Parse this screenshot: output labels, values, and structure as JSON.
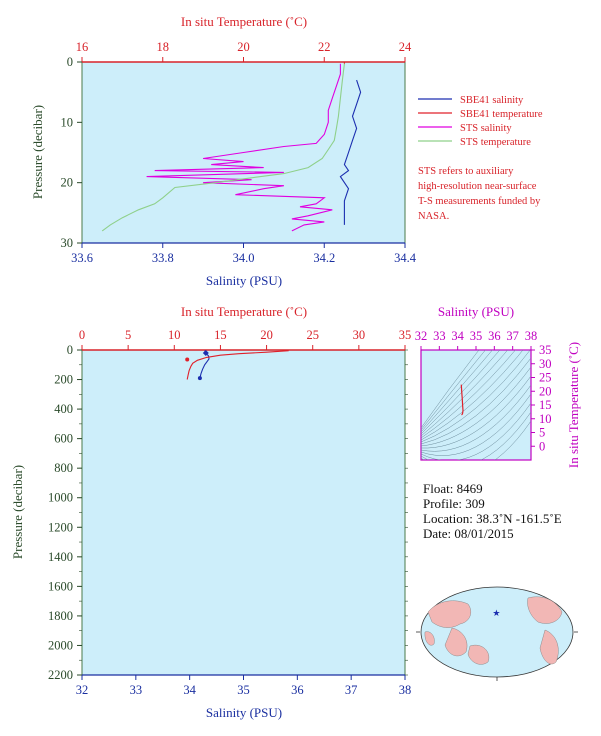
{
  "colors": {
    "plot_bg": "#cdeefa",
    "temperature": "#e0202a",
    "salinity": "#1c2fb0",
    "sts_salinity": "#e000e0",
    "sts_temperature": "#8fd08a",
    "pressure_axis": "#2a4a2a",
    "ts_axis": "#c000c0"
  },
  "chart_data": [
    {
      "id": "top-profile",
      "type": "line",
      "x_bottom_label": "Salinity (PSU)",
      "x_top_label": "In situ Temperature (˚C)",
      "ylabel": "Pressure (decibar)",
      "salinity_range": [
        33.6,
        34.4
      ],
      "temperature_range": [
        16,
        24
      ],
      "pressure_range": [
        0,
        30
      ],
      "y_inverted": true,
      "salinity_ticks": [
        "33.6",
        "33.8",
        "34.0",
        "34.2",
        "34.4"
      ],
      "temperature_ticks": [
        "16",
        "18",
        "20",
        "22",
        "24"
      ],
      "pressure_ticks": [
        "0",
        "10",
        "20",
        "30"
      ],
      "series": [
        {
          "name": "SBE41 salinity",
          "axis": "salinity",
          "color": "#1c2fb0",
          "points": [
            [
              34.28,
              3
            ],
            [
              34.29,
              5
            ],
            [
              34.28,
              7
            ],
            [
              34.27,
              9
            ],
            [
              34.28,
              11
            ],
            [
              34.27,
              13
            ],
            [
              34.26,
              15
            ],
            [
              34.25,
              17
            ],
            [
              34.26,
              18
            ],
            [
              34.24,
              19
            ],
            [
              34.26,
              21
            ],
            [
              34.25,
              23
            ],
            [
              34.25,
              25
            ],
            [
              34.25,
              27
            ]
          ]
        },
        {
          "name": "SBE41 temperature",
          "axis": "temperature",
          "color": "#e0202a",
          "points": [
            [
              22.5,
              0
            ],
            [
              22.5,
              0.3
            ]
          ]
        },
        {
          "name": "STS salinity",
          "axis": "sts_salinity",
          "color": "#e000e0",
          "points": [
            [
              34.24,
              0.3
            ],
            [
              34.24,
              2
            ],
            [
              34.23,
              4
            ],
            [
              34.22,
              6
            ],
            [
              34.21,
              8
            ],
            [
              34.21,
              10
            ],
            [
              34.2,
              12
            ],
            [
              34.18,
              13.5
            ],
            [
              34.1,
              14
            ],
            [
              34.0,
              15
            ],
            [
              33.9,
              16
            ],
            [
              34.0,
              16.5
            ],
            [
              33.92,
              17
            ],
            [
              34.05,
              17.5
            ],
            [
              33.78,
              18
            ],
            [
              34.1,
              18.3
            ],
            [
              33.76,
              19
            ],
            [
              34.02,
              19.5
            ],
            [
              33.9,
              20
            ],
            [
              34.1,
              20.5
            ],
            [
              34.05,
              21
            ],
            [
              33.98,
              22
            ],
            [
              34.2,
              22.5
            ],
            [
              34.18,
              23.5
            ],
            [
              34.14,
              24
            ],
            [
              34.22,
              24.5
            ],
            [
              34.16,
              25.5
            ],
            [
              34.12,
              26
            ],
            [
              34.2,
              26.5
            ],
            [
              34.15,
              27
            ],
            [
              34.12,
              28
            ]
          ]
        },
        {
          "name": "STS temperature",
          "axis": "temperature",
          "color": "#8fd08a",
          "points": [
            [
              22.5,
              0.3
            ],
            [
              22.45,
              3
            ],
            [
              22.4,
              6
            ],
            [
              22.35,
              9
            ],
            [
              22.3,
              11
            ],
            [
              22.25,
              13
            ],
            [
              22.1,
              14.5
            ],
            [
              21.95,
              16
            ],
            [
              21.6,
              17.5
            ],
            [
              21.0,
              18.5
            ],
            [
              20.2,
              19.2
            ],
            [
              19.3,
              20
            ],
            [
              18.3,
              20.8
            ],
            [
              18.0,
              22.5
            ],
            [
              17.8,
              23.5
            ],
            [
              17.4,
              24.5
            ],
            [
              17.0,
              25.8
            ],
            [
              16.7,
              27
            ],
            [
              16.5,
              28
            ]
          ]
        }
      ],
      "note": "STS refers to auxiliary high-resolution near-surface T-S measurements funded by NASA."
    },
    {
      "id": "bottom-profile",
      "type": "line",
      "x_bottom_label": "Salinity (PSU)",
      "x_top_label": "In situ Temperature (˚C)",
      "ylabel": "Pressure (decibar)",
      "salinity_range": [
        32,
        38
      ],
      "temperature_range": [
        0,
        35
      ],
      "pressure_range": [
        0,
        2200
      ],
      "y_inverted": true,
      "salinity_ticks": [
        "32",
        "33",
        "34",
        "35",
        "36",
        "37",
        "38"
      ],
      "temperature_ticks": [
        "0",
        "5",
        "10",
        "15",
        "20",
        "25",
        "30",
        "35"
      ],
      "pressure_ticks": [
        "0",
        "200",
        "400",
        "600",
        "800",
        "1000",
        "1200",
        "1400",
        "1600",
        "1800",
        "2000",
        "2200"
      ],
      "series": [
        {
          "name": "salinity",
          "axis": "salinity",
          "color": "#1c2fb0",
          "points": [
            [
              34.28,
              5
            ],
            [
              34.3,
              20
            ],
            [
              34.35,
              40
            ],
            [
              34.36,
              60
            ],
            [
              34.32,
              80
            ],
            [
              34.28,
              100
            ],
            [
              34.24,
              130
            ],
            [
              34.21,
              160
            ],
            [
              34.19,
              190
            ]
          ]
        },
        {
          "name": "temperature",
          "axis": "temperature",
          "color": "#e0202a",
          "points": [
            [
              22.4,
              5
            ],
            [
              20.0,
              15
            ],
            [
              17.0,
              25
            ],
            [
              15.0,
              35
            ],
            [
              13.5,
              50
            ],
            [
              12.5,
              70
            ],
            [
              12.0,
              90
            ],
            [
              11.8,
              110
            ],
            [
              11.6,
              140
            ],
            [
              11.5,
              170
            ],
            [
              11.4,
              200
            ]
          ]
        }
      ]
    },
    {
      "id": "ts-diagram",
      "type": "line",
      "x_top_label": "Salinity (PSU)",
      "ylabel": "In situ Temperature (˚C)",
      "salinity_range": [
        32,
        38
      ],
      "temperature_range": [
        -5,
        35
      ],
      "salinity_ticks": [
        "32",
        "33",
        "34",
        "35",
        "36",
        "37",
        "38"
      ],
      "temperature_ticks": [
        "0",
        "5",
        "10",
        "15",
        "20",
        "25",
        "30",
        "35"
      ],
      "series": [
        {
          "name": "ts",
          "color": "#e0202a",
          "points": [
            [
              34.2,
              22.4
            ],
            [
              34.22,
              20
            ],
            [
              34.25,
              17
            ],
            [
              34.27,
              15
            ],
            [
              34.29,
              13
            ],
            [
              34.27,
              12
            ],
            [
              34.24,
              11.6
            ],
            [
              34.21,
              11.4
            ]
          ]
        }
      ]
    }
  ],
  "info": {
    "float": "Float:  8469",
    "profile": "Profile:  309",
    "location": "Location:  38.3˚N  -161.5˚E",
    "date": "Date:  08/01/2015"
  },
  "legend": {
    "sbe41_salinity": "SBE41 salinity",
    "sbe41_temperature": "SBE41 temperature",
    "sts_salinity": "STS salinity",
    "sts_temperature": "STS temperature"
  },
  "map": {
    "marker": {
      "lat": 38.3,
      "lon": -161.5
    }
  }
}
